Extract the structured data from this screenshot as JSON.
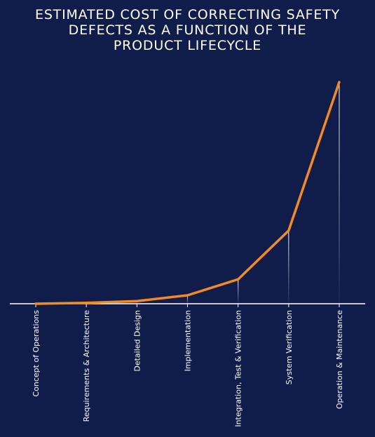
{
  "chart_data": {
    "type": "line",
    "title_lines": [
      "ESTIMATED COST OF CORRECTING SAFETY",
      "DEFECTS AS A FUNCTION OF THE",
      "PRODUCT LIFECYCLE"
    ],
    "xlabel": "",
    "ylabel": "",
    "categories": [
      "Concept of Operations",
      "Requirements & Architecture",
      "Detailed Design",
      "Implementation",
      "Integration, Test & Verification",
      "System Verification",
      "Operation & Maintenance"
    ],
    "series": [
      {
        "values": [
          0,
          0.4,
          1.2,
          3.8,
          11,
          33,
          100
        ]
      }
    ],
    "ylim": [
      0,
      100
    ],
    "y_axis_visible": false,
    "grid": false,
    "colors": {
      "background": "#101d4a",
      "line": "#f58a1f",
      "axis": "#ffffff",
      "drop_lines": "#ffffff"
    }
  }
}
